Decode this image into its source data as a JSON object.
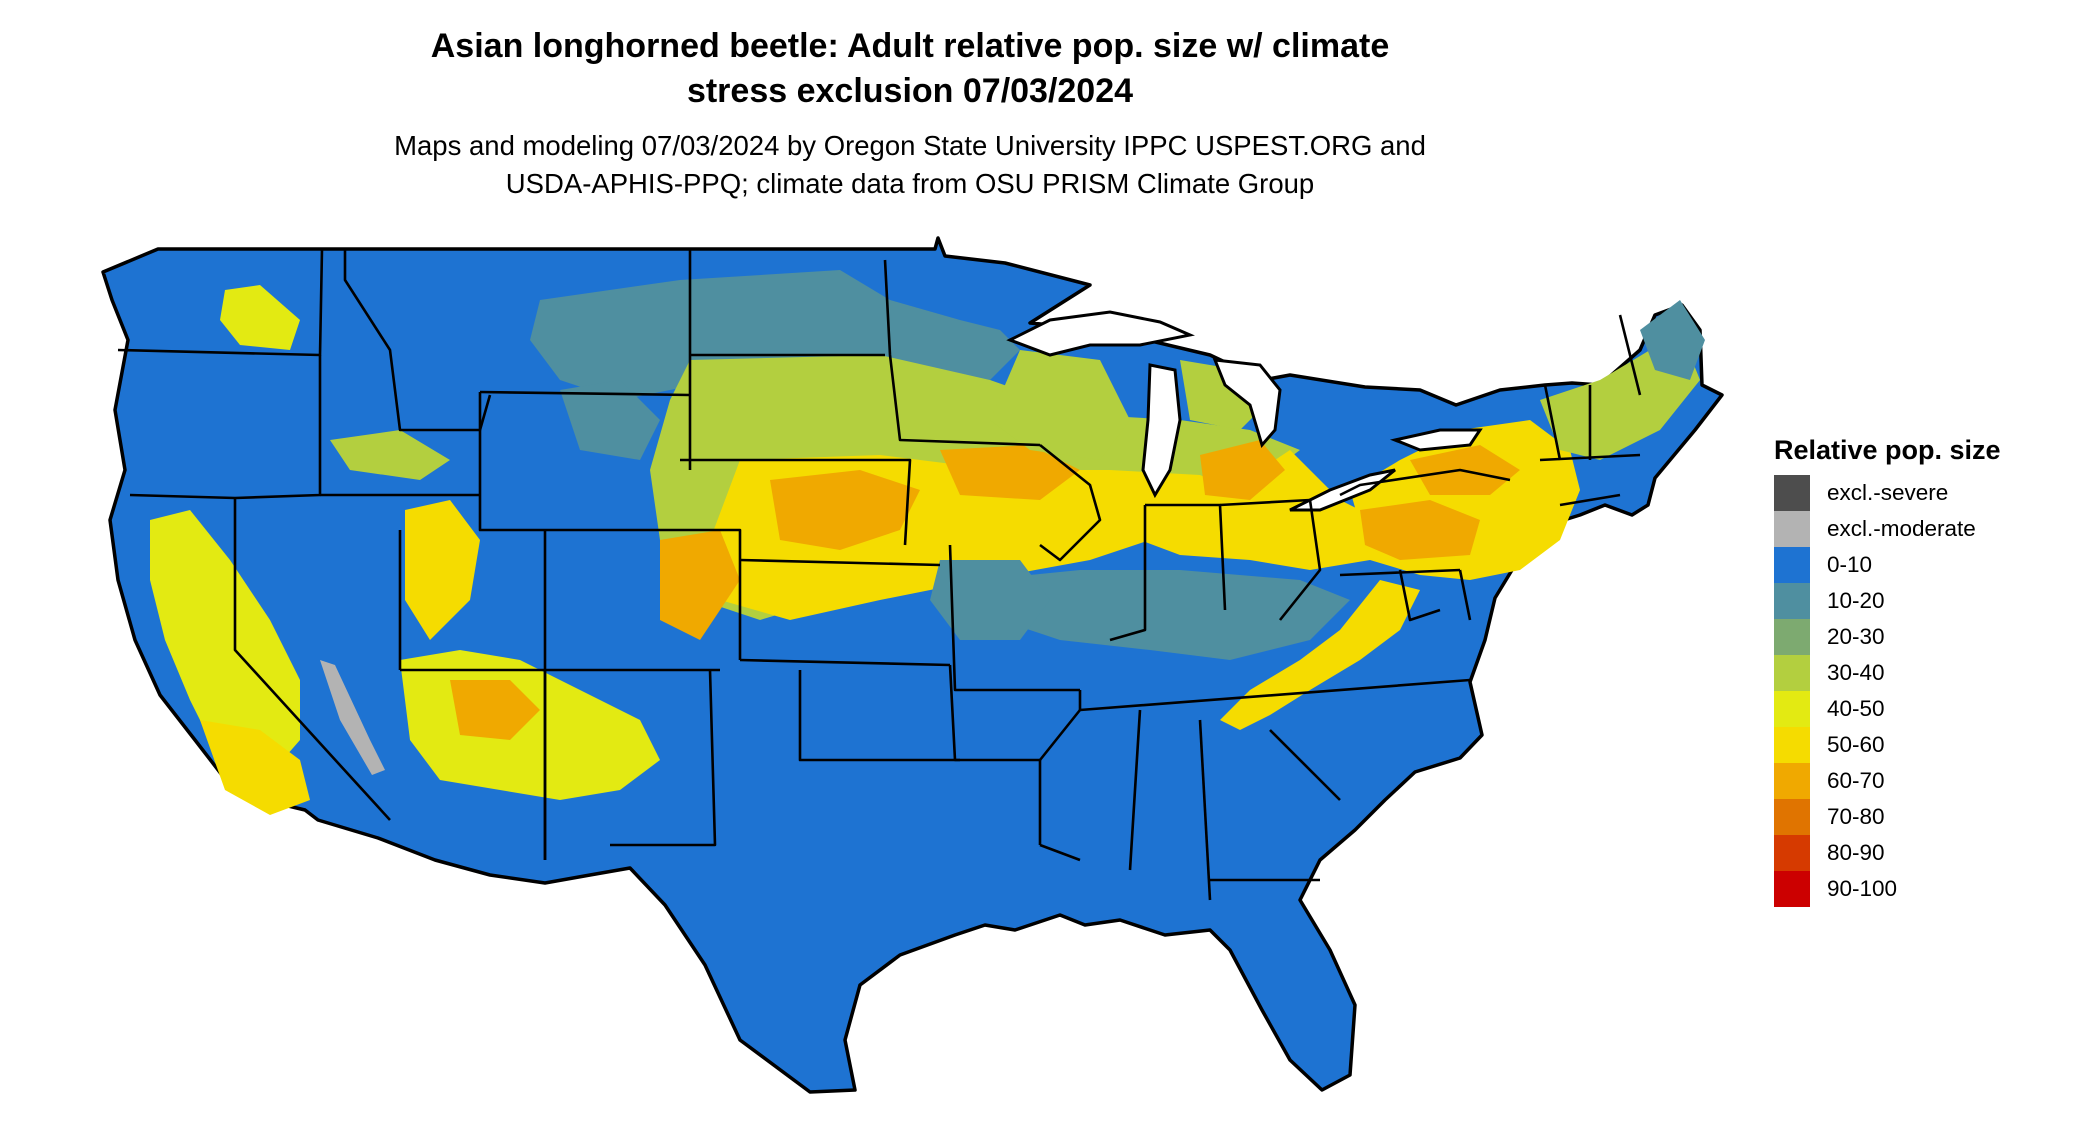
{
  "title": {
    "line1": "Asian longhorned beetle: Adult relative pop. size w/ climate",
    "line2": "stress exclusion 07/03/2024"
  },
  "subtitle": {
    "line1": "Maps and modeling 07/03/2024 by Oregon State University IPPC USPEST.ORG and",
    "line2": "USDA-APHIS-PPQ; climate data from OSU PRISM Climate Group"
  },
  "legend": {
    "title": "Relative pop. size",
    "items": [
      {
        "label": "excl.-severe",
        "color": "#4d4d4d"
      },
      {
        "label": "excl.-moderate",
        "color": "#b3b3b3"
      },
      {
        "label": "0-10",
        "color": "#1e73d2"
      },
      {
        "label": "10-20",
        "color": "#4f8fa0"
      },
      {
        "label": "20-30",
        "color": "#7daa70"
      },
      {
        "label": "30-40",
        "color": "#b3cf3f"
      },
      {
        "label": "40-50",
        "color": "#e3ea12"
      },
      {
        "label": "50-60",
        "color": "#f5dc00"
      },
      {
        "label": "60-70",
        "color": "#f0a900"
      },
      {
        "label": "70-80",
        "color": "#e07400"
      },
      {
        "label": "80-90",
        "color": "#d63a00"
      },
      {
        "label": "90-100",
        "color": "#cc0000"
      }
    ]
  }
}
